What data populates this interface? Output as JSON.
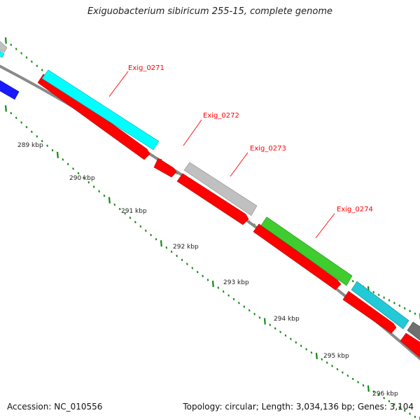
{
  "title": "Exiguobacterium sibiricum 255-15, complete genome",
  "accession": "Accession: NC_010556",
  "summary": "Topology: circular; Length: 3,034,136 bp; Genes: 3,104",
  "colors": {
    "red": "#ff0000",
    "cyan": "#00ffff",
    "gray": "#bdbdbd",
    "green": "#3fcc2f",
    "blue": "#1a1aff",
    "teal": "#22c9d6",
    "dark_gray": "#6e6e6e",
    "backbone": "#888888",
    "tick": "#138a13",
    "label_red": "#ff0000"
  },
  "tick_labels": [
    "289 kbp",
    "290 kbp",
    "291 kbp",
    "292 kbp",
    "293 kbp",
    "294 kbp",
    "295 kbp",
    "296 kbp"
  ],
  "gene_labels": [
    "Exig_0271",
    "Exig_0272",
    "Exig_0273",
    "Exig_0274"
  ]
}
